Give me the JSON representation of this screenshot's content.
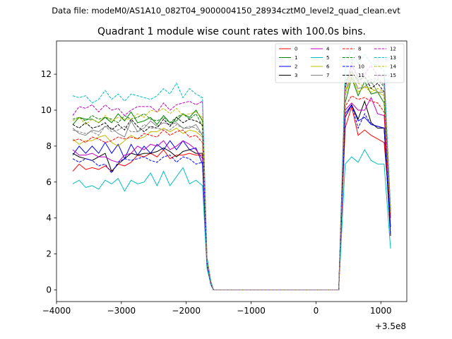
{
  "suptitle": "Data file: modeM0/AS1A10_082T04_9000004150_28934cztM0_level2_quad_clean.evt",
  "chart_data": {
    "type": "line",
    "title": "Quadrant 1 module wise count rates with 100.0s bins.",
    "xlabel": "",
    "ylabel": "",
    "x_offset_label": "+3.5e8",
    "xlim": [
      -4000,
      1400
    ],
    "ylim": [
      -0.65,
      13.85
    ],
    "xticks": [
      -4000,
      -3000,
      -2000,
      -1000,
      0,
      1000
    ],
    "xtick_labels": [
      "−4000",
      "−3000",
      "−2000",
      "−1000",
      "0",
      "1000"
    ],
    "yticks": [
      0,
      2,
      4,
      6,
      8,
      10,
      12
    ],
    "ytick_labels": [
      "0",
      "2",
      "4",
      "6",
      "8",
      "10",
      "12"
    ],
    "grid": false,
    "legend": {
      "placement": "upper-right",
      "columns": 4
    },
    "x": [
      -3750,
      -3650,
      -3550,
      -3450,
      -3350,
      -3250,
      -3150,
      -3050,
      -2950,
      -2850,
      -2750,
      -2650,
      -2550,
      -2450,
      -2350,
      -2250,
      -2150,
      -2050,
      -1950,
      -1850,
      -1750,
      -1680,
      -1620,
      -1580,
      -1500,
      350,
      450,
      550,
      650,
      750,
      850,
      950,
      1050,
      1150
    ],
    "series": [
      {
        "name": "0",
        "color": "#ff0000",
        "dash": "solid",
        "values": [
          6.6,
          7.0,
          6.7,
          6.8,
          6.7,
          6.9,
          6.6,
          7.0,
          6.9,
          7.1,
          7.5,
          7.4,
          7.6,
          7.4,
          7.8,
          7.3,
          7.5,
          7.5,
          7.6,
          7.5,
          7.5,
          1.5,
          0.4,
          0,
          0,
          0,
          9.0,
          10.2,
          8.6,
          8.9,
          8.6,
          8.4,
          8.2,
          4.0
        ]
      },
      {
        "name": "1",
        "color": "#008000",
        "dash": "solid",
        "values": [
          9.2,
          9.6,
          9.5,
          9.5,
          9.3,
          9.6,
          9.3,
          9.8,
          9.4,
          9.9,
          9.3,
          9.4,
          9.6,
          9.2,
          9.7,
          9.3,
          9.4,
          9.8,
          9.6,
          10.0,
          9.4,
          1.6,
          0.4,
          0,
          0,
          0,
          10.4,
          11.8,
          10.8,
          11.6,
          10.9,
          11.0,
          10.4,
          4.2
        ]
      },
      {
        "name": "2",
        "color": "#0000ff",
        "dash": "solid",
        "values": [
          7.5,
          8.0,
          7.6,
          8.0,
          7.6,
          8.2,
          7.6,
          8.1,
          7.3,
          8.1,
          7.5,
          8.0,
          7.6,
          8.1,
          7.8,
          8.3,
          7.8,
          8.3,
          7.8,
          7.9,
          7.0,
          1.4,
          0.3,
          0,
          0,
          0,
          9.8,
          10.3,
          9.4,
          9.6,
          9.2,
          9.1,
          9.0,
          3.5
        ]
      },
      {
        "name": "3",
        "color": "#000000",
        "dash": "solid",
        "values": [
          7.6,
          7.4,
          7.3,
          7.2,
          7.4,
          7.6,
          6.6,
          7.0,
          7.3,
          7.6,
          7.5,
          7.6,
          7.6,
          7.7,
          7.9,
          7.7,
          7.4,
          7.7,
          7.8,
          7.6,
          7.6,
          1.4,
          0.3,
          0,
          0,
          0,
          9.6,
          10.3,
          9.5,
          10.5,
          9.3,
          9.0,
          9.0,
          3.0
        ]
      },
      {
        "name": "4",
        "color": "#c000c0",
        "dash": "solid",
        "values": [
          7.8,
          7.5,
          7.5,
          7.6,
          7.4,
          7.4,
          7.2,
          7.1,
          7.5,
          7.6,
          8.0,
          7.8,
          8.1,
          8.0,
          8.3,
          7.8,
          8.0,
          8.3,
          8.1,
          7.8,
          7.3,
          1.4,
          0.3,
          0,
          0,
          0,
          10.0,
          10.4,
          10.0,
          10.0,
          10.7,
          9.8,
          9.7,
          4.3
        ]
      },
      {
        "name": "5",
        "color": "#00bfbf",
        "dash": "solid",
        "values": [
          5.9,
          6.1,
          5.7,
          5.8,
          5.6,
          6.1,
          5.9,
          6.2,
          5.5,
          6.1,
          5.9,
          6.0,
          6.5,
          5.8,
          6.6,
          5.8,
          6.3,
          6.8,
          5.9,
          6.1,
          5.8,
          1.2,
          0.3,
          0,
          0,
          0,
          7.0,
          7.4,
          7.1,
          7.8,
          7.2,
          7.0,
          7.0,
          2.3
        ]
      },
      {
        "name": "6",
        "color": "#bfbf00",
        "dash": "solid",
        "values": [
          8.4,
          8.1,
          8.3,
          8.3,
          8.5,
          8.6,
          8.2,
          8.0,
          8.3,
          8.6,
          8.4,
          8.5,
          8.8,
          8.8,
          9.0,
          8.8,
          9.0,
          8.7,
          8.9,
          8.8,
          8.5,
          1.5,
          0.4,
          0,
          0,
          0,
          10.8,
          11.9,
          11.0,
          11.3,
          11.2,
          11.0,
          10.8,
          4.3
        ]
      },
      {
        "name": "7",
        "color": "#808080",
        "dash": "solid",
        "values": [
          9.0,
          8.7,
          8.6,
          8.9,
          8.8,
          9.1,
          9.0,
          8.7,
          8.5,
          9.4,
          8.8,
          9.0,
          9.4,
          9.1,
          9.3,
          9.2,
          9.3,
          9.0,
          9.0,
          9.2,
          8.6,
          1.5,
          0.4,
          0,
          0,
          0,
          11.0,
          12.0,
          11.2,
          11.3,
          11.6,
          11.0,
          11.0,
          4.2
        ]
      },
      {
        "name": "8",
        "color": "#ff0000",
        "dash": "dashed",
        "values": [
          8.3,
          8.4,
          8.2,
          8.5,
          8.4,
          8.2,
          8.3,
          8.5,
          8.4,
          8.5,
          8.4,
          8.7,
          8.6,
          8.5,
          8.9,
          8.6,
          8.8,
          8.9,
          8.5,
          8.6,
          8.2,
          1.5,
          0.4,
          0,
          0,
          0,
          10.2,
          10.8,
          10.6,
          10.7,
          10.5,
          10.4,
          9.9,
          4.1
        ]
      },
      {
        "name": "9",
        "color": "#008000",
        "dash": "dashed",
        "values": [
          9.5,
          9.6,
          9.4,
          9.7,
          9.5,
          9.6,
          9.5,
          9.3,
          9.7,
          9.5,
          9.6,
          9.8,
          9.5,
          9.4,
          9.6,
          9.3,
          9.6,
          9.8,
          9.5,
          9.8,
          9.1,
          1.6,
          0.4,
          0,
          0,
          0,
          11.6,
          12.1,
          11.7,
          11.8,
          11.5,
          11.7,
          11.3,
          4.2
        ]
      },
      {
        "name": "10",
        "color": "#0000ff",
        "dash": "dashed",
        "values": [
          7.3,
          7.1,
          7.3,
          7.2,
          6.9,
          7.0,
          6.5,
          7.1,
          7.3,
          7.2,
          7.3,
          7.4,
          7.2,
          7.1,
          7.4,
          7.5,
          7.1,
          7.4,
          7.3,
          7.0,
          7.1,
          1.4,
          0.3,
          0,
          0,
          0,
          9.6,
          10.3,
          9.0,
          9.8,
          9.2,
          9.1,
          9.0,
          3.1
        ]
      },
      {
        "name": "11",
        "color": "#000000",
        "dash": "dashed",
        "values": [
          9.2,
          9.0,
          9.3,
          9.0,
          9.1,
          9.3,
          8.9,
          9.2,
          8.9,
          9.5,
          9.1,
          8.8,
          9.1,
          9.0,
          9.5,
          9.1,
          9.6,
          9.3,
          9.5,
          9.4,
          9.2,
          1.6,
          0.4,
          0,
          0,
          0,
          11.4,
          12.2,
          11.6,
          11.9,
          11.2,
          11.5,
          11.0,
          4.3
        ]
      },
      {
        "name": "12",
        "color": "#c000c0",
        "dash": "dashed",
        "values": [
          9.7,
          10.2,
          10.1,
          10.3,
          9.9,
          10.3,
          10.0,
          10.1,
          9.7,
          10.0,
          10.2,
          10.2,
          10.2,
          9.9,
          10.4,
          10.0,
          10.3,
          10.4,
          10.5,
          10.3,
          10.5,
          1.8,
          0.4,
          0,
          0,
          0,
          11.2,
          12.5,
          11.8,
          12.0,
          12.5,
          11.9,
          11.9,
          4.4
        ]
      },
      {
        "name": "13",
        "color": "#00bfbf",
        "dash": "dashed",
        "values": [
          10.8,
          10.7,
          10.8,
          10.4,
          10.6,
          11.1,
          10.6,
          10.9,
          10.5,
          10.9,
          10.8,
          10.7,
          10.6,
          10.8,
          11.2,
          10.9,
          11.5,
          10.7,
          11.2,
          10.9,
          10.7,
          1.8,
          0.5,
          0,
          0,
          0,
          12.2,
          13.5,
          12.6,
          13.1,
          12.6,
          12.5,
          12.2,
          4.6
        ]
      },
      {
        "name": "14",
        "color": "#bfbf00",
        "dash": "dashed",
        "values": [
          9.4,
          9.6,
          9.2,
          9.5,
          9.3,
          9.7,
          9.4,
          9.6,
          9.5,
          9.5,
          9.8,
          9.6,
          10.0,
          9.9,
          10.1,
          9.8,
          10.1,
          9.7,
          9.8,
          9.9,
          9.6,
          1.6,
          0.4,
          0,
          0,
          0,
          11.0,
          12.2,
          11.5,
          11.3,
          11.0,
          11.2,
          11.0,
          4.3
        ]
      },
      {
        "name": "15",
        "color": "#808080",
        "dash": "dashed",
        "values": [
          8.9,
          8.8,
          8.7,
          8.8,
          8.6,
          9.1,
          8.8,
          8.9,
          9.1,
          8.8,
          8.8,
          9.2,
          9.0,
          9.0,
          8.9,
          8.9,
          9.2,
          9.0,
          9.1,
          9.0,
          8.6,
          1.5,
          0.4,
          0,
          0,
          0,
          11.2,
          12.7,
          11.8,
          12.1,
          11.7,
          11.8,
          11.4,
          4.3
        ]
      }
    ]
  }
}
